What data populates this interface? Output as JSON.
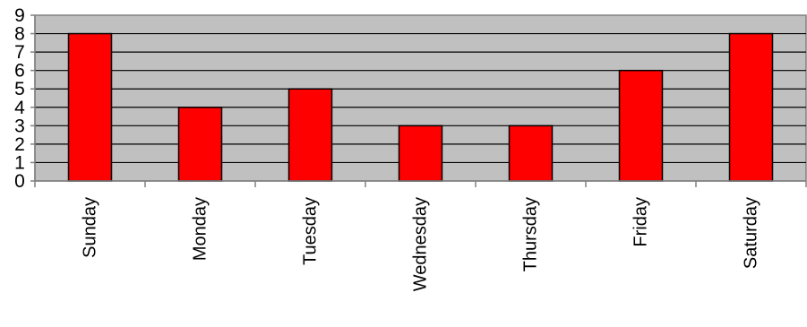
{
  "chart_data": {
    "type": "bar",
    "title": "",
    "xlabel": "",
    "ylabel": "",
    "categories": [
      "Sunday",
      "Monday",
      "Tuesday",
      "Wednesday",
      "Thursday",
      "Friday",
      "Saturday"
    ],
    "values": [
      8,
      4,
      5,
      3,
      3,
      6,
      8
    ],
    "ylim": [
      0,
      9
    ],
    "yticks": [
      "0",
      "1",
      "2",
      "3",
      "4",
      "5",
      "6",
      "7",
      "8",
      "9"
    ],
    "grid": true,
    "legend": "none",
    "colors": {
      "bar_fill": "#ff0000",
      "bar_stroke": "#000000",
      "plot_background": "#c0c0c0",
      "gridline": "#000000",
      "axis": "#808080"
    }
  }
}
